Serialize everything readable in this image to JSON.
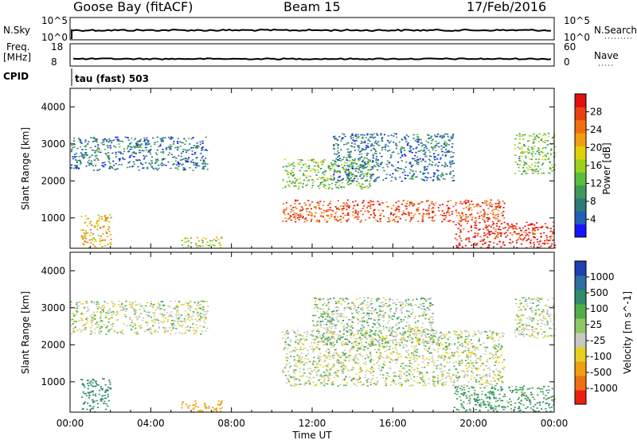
{
  "header": {
    "station": "Goose Bay (fitACF)",
    "beam": "Beam 15",
    "date": "17/Feb/2016"
  },
  "top_panels": {
    "nsky_label": "N.Sky",
    "nsearch_label": "N.Search",
    "nsky_ticks": [
      "10^5",
      "10^0"
    ],
    "nsearch_ticks": [
      "10^5",
      "10^0"
    ],
    "freq_label": "Freq.",
    "freq_unit": "[MHz]",
    "freq_ticks": [
      "18",
      "8"
    ],
    "nave_label": "Nave",
    "nave_ticks": [
      "60",
      "0"
    ],
    "cpid_label": "CPID",
    "cpid_value": "tau (fast) 503"
  },
  "power_colorbar": {
    "label": "Power [dB]",
    "ticks": [
      "28",
      "24",
      "20",
      "16",
      "12",
      "8",
      "4"
    ],
    "colors": [
      "#1414ff",
      "#1f5fb4",
      "#2e7a78",
      "#3e9a5a",
      "#5abd3c",
      "#9ad21e",
      "#e0d20a",
      "#f2a010",
      "#f07010",
      "#ec4010",
      "#e01010"
    ]
  },
  "velocity_colorbar": {
    "label": "Velocity [m s^-1]",
    "ticks": [
      "1000",
      "500",
      "100",
      "25",
      "-25",
      "-100",
      "-500",
      "-1000"
    ],
    "colors": [
      "#1f3fb4",
      "#2e6ea0",
      "#2e8c6a",
      "#4fae4a",
      "#8cc864",
      "#c8c8c0",
      "#e8d020",
      "#f0a010",
      "#f07010",
      "#ec2010"
    ]
  },
  "x_axis": {
    "label": "Time UT",
    "ticks": [
      "00:00",
      "04:00",
      "08:00",
      "12:00",
      "16:00",
      "20:00",
      "00:00"
    ]
  },
  "y_axis": {
    "label": "Slant Range [km]",
    "ticks": [
      "4000",
      "3000",
      "2000",
      "1000"
    ]
  },
  "colors": {
    "gray_scatter": "#c8c8c0"
  },
  "chart_data": [
    {
      "type": "heatmap",
      "title": "Power",
      "xlabel": "",
      "ylabel": "Slant Range [km]",
      "xlim": [
        0,
        24
      ],
      "ylim": [
        180,
        4500
      ],
      "value_unit": "dB",
      "bands": [
        {
          "t0": 0.0,
          "t1": 6.8,
          "r0": 2300,
          "r1": 3200,
          "value": 8
        },
        {
          "t0": 3.0,
          "t1": 4.0,
          "r0": 2900,
          "r1": 3100,
          "value": 12
        },
        {
          "t0": 0.5,
          "t1": 2.0,
          "r0": 200,
          "r1": 1100,
          "value": 20
        },
        {
          "t0": 5.5,
          "t1": 7.5,
          "r0": 200,
          "r1": 500,
          "value": 16
        },
        {
          "t0": 10.5,
          "t1": 21.5,
          "r0": 900,
          "r1": 1500,
          "value": 26
        },
        {
          "t0": 10.5,
          "t1": 15.0,
          "r0": 1800,
          "r1": 2600,
          "value": 14
        },
        {
          "t0": 13.0,
          "t1": 19.0,
          "r0": 2000,
          "r1": 3300,
          "value": 8
        },
        {
          "t0": 19.0,
          "t1": 24.0,
          "r0": 200,
          "r1": 900,
          "value": 28
        },
        {
          "t0": 22.0,
          "t1": 24.0,
          "r0": 2200,
          "r1": 3300,
          "value": 14
        }
      ]
    },
    {
      "type": "heatmap",
      "title": "Velocity",
      "xlabel": "Time UT",
      "ylabel": "Slant Range [km]",
      "xlim": [
        0,
        24
      ],
      "ylim": [
        180,
        4500
      ],
      "value_unit": "m s^-1",
      "bands": [
        {
          "t0": 0.0,
          "t1": 6.8,
          "r0": 2300,
          "r1": 3200,
          "value": 0
        },
        {
          "t0": 0.5,
          "t1": 2.0,
          "r0": 200,
          "r1": 1100,
          "value": 150
        },
        {
          "t0": 5.5,
          "t1": 7.5,
          "r0": 200,
          "r1": 500,
          "value": -200
        },
        {
          "t0": 10.5,
          "t1": 21.5,
          "r0": 900,
          "r1": 2400,
          "value": 0
        },
        {
          "t0": 12.0,
          "t1": 18.0,
          "r0": 2000,
          "r1": 3300,
          "value": 20
        },
        {
          "t0": 19.0,
          "t1": 24.0,
          "r0": 200,
          "r1": 900,
          "value": 80
        },
        {
          "t0": 22.0,
          "t1": 24.0,
          "r0": 2200,
          "r1": 3300,
          "value": 0
        }
      ]
    }
  ]
}
